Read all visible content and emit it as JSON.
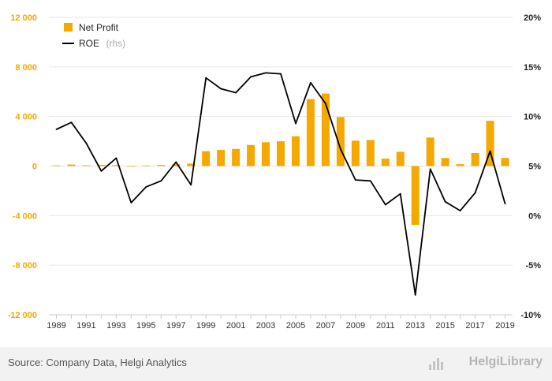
{
  "chart_data": {
    "type": "bar",
    "x": [
      "1989",
      "1990",
      "1991",
      "1992",
      "1993",
      "1994",
      "1995",
      "1996",
      "1997",
      "1998",
      "1999",
      "2000",
      "2001",
      "2002",
      "2003",
      "2004",
      "2005",
      "2006",
      "2007",
      "2008",
      "2009",
      "2010",
      "2011",
      "2012",
      "2013",
      "2014",
      "2015",
      "2016",
      "2017",
      "2018",
      "2019"
    ],
    "x_tick_labels": [
      "1989",
      "1991",
      "1993",
      "1995",
      "1997",
      "1999",
      "2001",
      "2003",
      "2005",
      "2007",
      "2009",
      "2011",
      "2013",
      "2015",
      "2017",
      "2019"
    ],
    "y_left_ticks": [
      "12 000",
      "8 000",
      "4 000",
      "0",
      "-4 000",
      "-8 000",
      "-12 000"
    ],
    "y_right_ticks": [
      "20%",
      "15%",
      "10%",
      "5%",
      "0%",
      "-5%",
      "-10%"
    ],
    "ylim_left": [
      -12000,
      12000
    ],
    "ylim_right": [
      -10,
      20
    ],
    "series": [
      {
        "name": "Net Profit",
        "type": "bar",
        "axis": "left",
        "color": "#f5a800",
        "values": [
          50,
          120,
          60,
          100,
          80,
          -30,
          40,
          80,
          150,
          200,
          1200,
          1300,
          1380,
          1700,
          1920,
          2000,
          2400,
          5400,
          5850,
          3950,
          2050,
          2100,
          600,
          1150,
          -4750,
          2300,
          650,
          150,
          1050,
          3650,
          650
        ]
      },
      {
        "name": "ROE",
        "suffix": "(rhs)",
        "type": "line",
        "axis": "right",
        "color": "#000000",
        "values": [
          8.7,
          9.4,
          7.3,
          4.5,
          5.8,
          1.3,
          2.9,
          3.5,
          5.4,
          3.1,
          13.9,
          12.8,
          12.4,
          14.0,
          14.4,
          14.3,
          9.3,
          13.4,
          11.3,
          6.7,
          3.6,
          3.5,
          1.1,
          2.2,
          -8.0,
          4.7,
          1.4,
          0.5,
          2.3,
          6.5,
          1.2
        ]
      }
    ],
    "legend": "top-left",
    "grid": "horizontal"
  },
  "footer": {
    "source": "Source: Company Data, Helgi Analytics",
    "brand": "HelgiLibrary"
  },
  "colors": {
    "bar": "#f5a800",
    "line": "#000000",
    "left_axis_text": "#f5a800",
    "footer_bg": "#f2f2f2"
  }
}
